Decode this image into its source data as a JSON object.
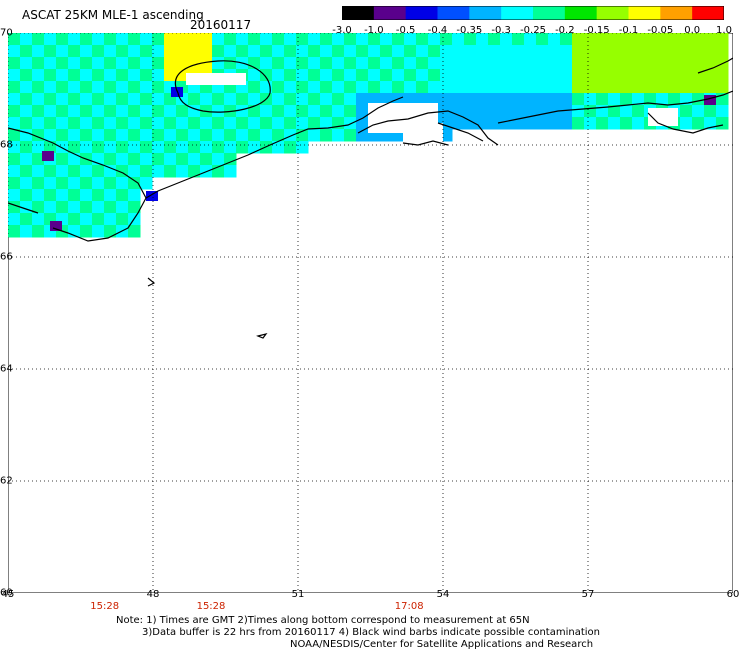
{
  "header": {
    "title": "ASCAT 25KM MLE-1 ascending",
    "date": "20160117"
  },
  "colorbar": {
    "labels": [
      "-3.0",
      "-1.0",
      "-0.5",
      "-0.4",
      "-0.35",
      "-0.3",
      "-0.25",
      "-0.2",
      "-0.15",
      "-0.1",
      "-0.05",
      "0.0",
      "1.0"
    ],
    "colors": [
      "#000000",
      "#5a008c",
      "#0000e6",
      "#0050ff",
      "#00b4ff",
      "#00ffff",
      "#00ff96",
      "#00e600",
      "#96ff00",
      "#ffff00",
      "#ffa000",
      "#ff0000"
    ]
  },
  "map": {
    "lat_labels": [
      "70",
      "68",
      "66",
      "64",
      "62",
      "60"
    ],
    "lon_labels": [
      "45",
      "48",
      "51",
      "54",
      "57",
      "60"
    ],
    "lat_range": [
      60,
      70
    ],
    "lon_range": [
      45,
      60
    ],
    "times": [
      "15:28",
      "15:28",
      "17:08"
    ],
    "time_color": "#cc2200",
    "grid": "dotted"
  },
  "notes": {
    "line1": "Note: 1) Times are GMT 2)Times along bottom correspond to measurement at 65N",
    "line2": "3)Data buffer is 22 hrs from 20160117 4) Black wind barbs indicate possible contamination",
    "line3": "NOAA/NESDIS/Center for Satellite Applications and Research"
  }
}
